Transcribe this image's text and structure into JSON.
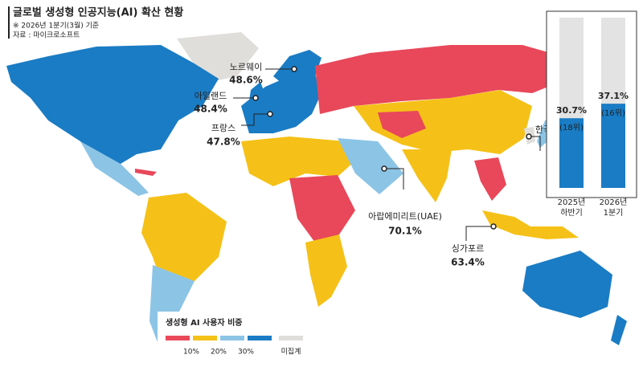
{
  "header": {
    "title": "글로벌 생성형 인공지능(AI) 확산 현황",
    "note": "※ 2026년 1분기(3월) 기준",
    "source": "자료 : 마이크로소프트"
  },
  "callouts": [
    {
      "country": "노르웨이",
      "value": "48.6%"
    },
    {
      "country": "아일랜드",
      "value": "48.4%"
    },
    {
      "country": "프랑스",
      "value": "47.8%"
    },
    {
      "country": "아랍에미리트(UAE)",
      "value": "70.1%"
    },
    {
      "country": "싱가포르",
      "value": "63.4%"
    }
  ],
  "korea": {
    "label": "한국",
    "type": "bar",
    "categories": [
      [
        "2025년",
        "하반기"
      ],
      [
        "2026년",
        "1분기"
      ]
    ],
    "values": [
      30.7,
      37.1
    ],
    "value_labels": [
      "30.7%",
      "37.1%"
    ],
    "ranks": [
      "(18위)",
      "(16위)"
    ],
    "ylim": [
      0,
      75
    ],
    "color": "#1a7cc4",
    "track_color": "#e3e3e3"
  },
  "legend": {
    "title": "생성형 AI 사용자 비중",
    "ticks": [
      "10%",
      "20%",
      "30%"
    ],
    "missing": "미집계",
    "colors": [
      "#e8485a",
      "#f5c118",
      "#8cc4e6",
      "#1a7cc4"
    ],
    "missing_color": "#e0dedb"
  }
}
